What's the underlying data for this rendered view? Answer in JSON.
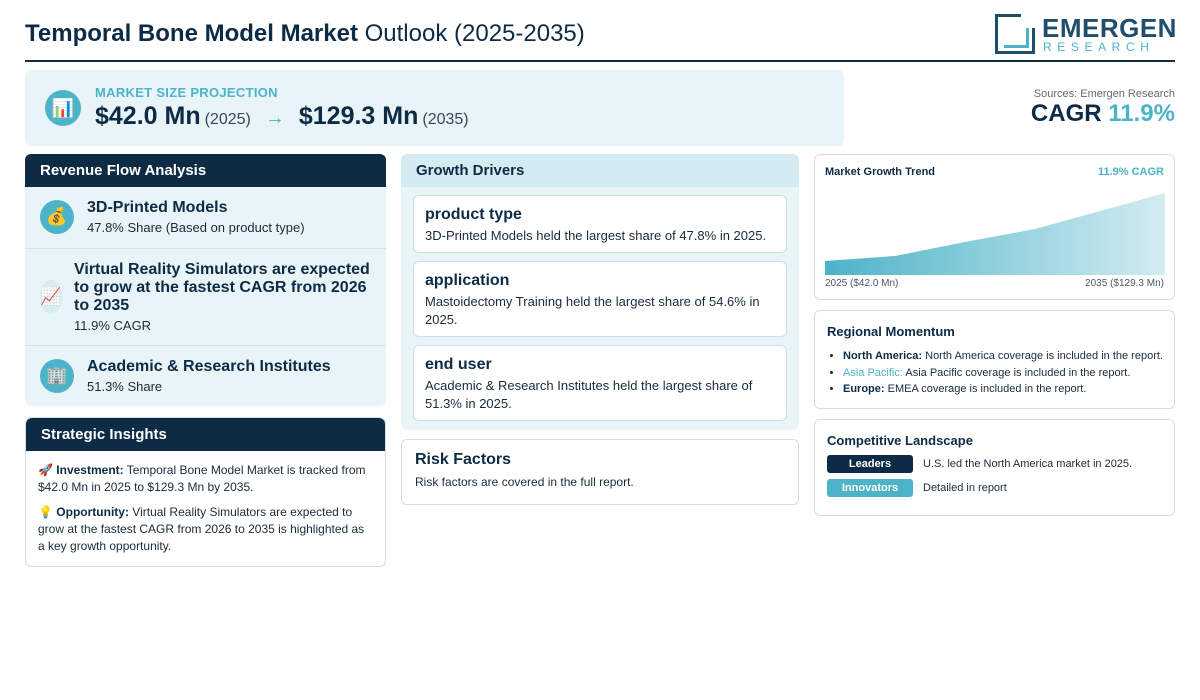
{
  "header": {
    "title_bold": "Temporal Bone Model Market",
    "title_rest": "Outlook (2025-2035)",
    "logo_name": "EMERGEN",
    "logo_sub": "RESEARCH"
  },
  "projection": {
    "label": "MARKET SIZE PROJECTION",
    "start_value": "$42.0 Mn",
    "start_year": "(2025)",
    "arrow": "→",
    "end_value": "$129.3 Mn",
    "end_year": "(2035)",
    "icon": "bar-chart-icon"
  },
  "sources": "Sources: Emergen Research",
  "cagr": {
    "label": "CAGR",
    "value": "11.9%"
  },
  "revenue_flow": {
    "heading": "Revenue Flow Analysis",
    "items": [
      {
        "icon": "money-bag-icon",
        "title": "3D-Printed Models",
        "subtitle": "47.8% Share (Based on product type)"
      },
      {
        "icon": "trend-up-icon",
        "title": "Virtual Reality Simulators are expected to grow at the fastest CAGR from 2026 to 2035",
        "subtitle": "11.9% CAGR"
      },
      {
        "icon": "building-icon",
        "title": "Academic & Research Institutes",
        "subtitle": "51.3% Share"
      }
    ]
  },
  "strategic": {
    "heading": "Strategic Insights",
    "investment_label": "Investment:",
    "investment_text": "Temporal Bone Model Market is tracked from $42.0 Mn in 2025 to $129.3 Mn by 2035.",
    "opportunity_label": "Opportunity:",
    "opportunity_text": "Virtual Reality Simulators are expected to grow at the fastest CAGR from 2026 to 2035 is highlighted as a key growth opportunity."
  },
  "growth_drivers": {
    "heading": "Growth Drivers",
    "items": [
      {
        "title": "product type",
        "desc": "3D-Printed Models held the largest share of 47.8% in 2025."
      },
      {
        "title": "application",
        "desc": "Mastoidectomy Training held the largest share of 54.6% in 2025."
      },
      {
        "title": "end user",
        "desc": "Academic & Research Institutes held the largest share of 51.3% in 2025."
      }
    ]
  },
  "risk": {
    "title": "Risk Factors",
    "desc": "Risk factors are covered in the full report."
  },
  "trend": {
    "title": "Market Growth Trend",
    "cagr_label": "11.9% CAGR",
    "left_label": "2025 ($42.0 Mn)",
    "right_label": "2035 ($129.3 Mn)",
    "accent": "#4db3c8"
  },
  "regional": {
    "title": "Regional Momentum",
    "items": [
      {
        "region": "North America:",
        "text": "North America coverage is included in the report."
      },
      {
        "region": "Asia Pacific:",
        "text": "Asia Pacific coverage is included in the report."
      },
      {
        "region": "Europe:",
        "text": "EMEA coverage is included in the report."
      }
    ]
  },
  "competitive": {
    "title": "Competitive Landscape",
    "leaders_label": "Leaders",
    "leaders_text": "U.S. led the North America market in 2025.",
    "innovators_label": "Innovators",
    "innovators_text": "Detailed in report"
  },
  "colors": {
    "navy": "#0d2b45",
    "accent": "#4db3c8",
    "panel": "#e8f4f7"
  }
}
